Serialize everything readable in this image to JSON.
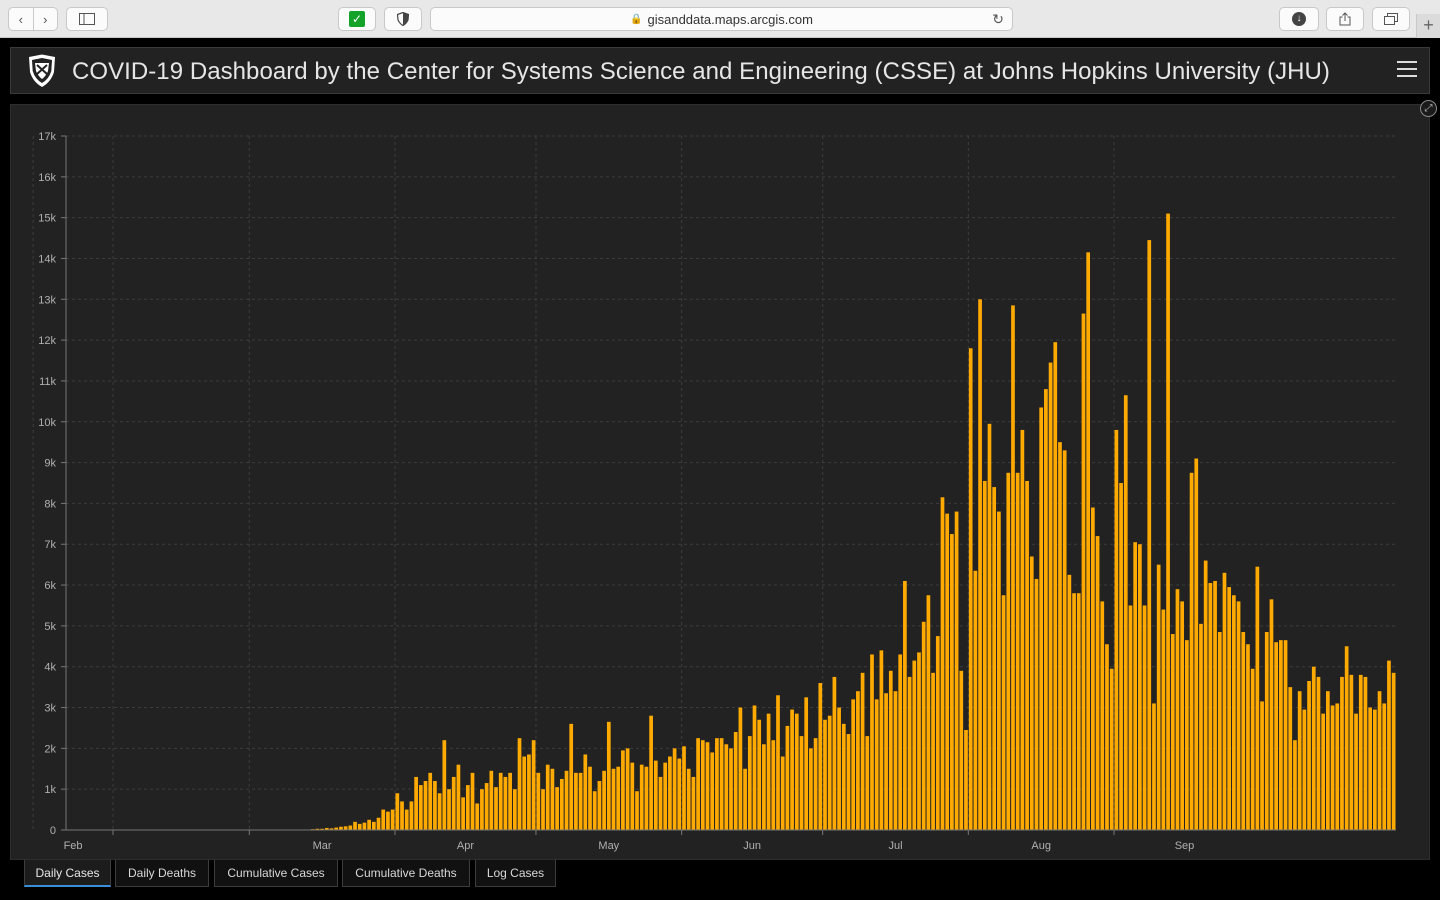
{
  "browser": {
    "url": "gisanddata.maps.arcgis.com"
  },
  "header": {
    "title": "COVID-19 Dashboard by the Center for Systems Science and Engineering (CSSE) at Johns Hopkins University (JHU)"
  },
  "tabs": [
    {
      "label": "Daily Cases",
      "active": true
    },
    {
      "label": "Daily Deaths",
      "active": false
    },
    {
      "label": "Cumulative Cases",
      "active": false
    },
    {
      "label": "Cumulative Deaths",
      "active": false
    },
    {
      "label": "Log Cases",
      "active": false
    }
  ],
  "colors": {
    "bar": "#ffaa00",
    "panel": "#222222",
    "active_tab_underline": "#3a8fd9"
  },
  "chart_data": {
    "type": "bar",
    "ylim": [
      0,
      17000
    ],
    "y_ticks": [
      "0",
      "1k",
      "2k",
      "3k",
      "4k",
      "5k",
      "6k",
      "7k",
      "8k",
      "9k",
      "10k",
      "11k",
      "12k",
      "13k",
      "14k",
      "15k",
      "16k",
      "17k"
    ],
    "x_ticks": [
      "Feb",
      "Mar",
      "Apr",
      "May",
      "Jun",
      "Jul",
      "Aug",
      "Sep"
    ],
    "grid": true,
    "start_date": "2020-01-22",
    "values": [
      0,
      0,
      0,
      0,
      0,
      0,
      0,
      0,
      0,
      0,
      0,
      0,
      0,
      0,
      0,
      0,
      0,
      0,
      0,
      0,
      0,
      0,
      0,
      0,
      0,
      0,
      0,
      0,
      0,
      0,
      0,
      0,
      0,
      0,
      0,
      0,
      0,
      0,
      0,
      0,
      0,
      0,
      0,
      0,
      0,
      0,
      0,
      0,
      0,
      0,
      0,
      10,
      20,
      30,
      30,
      50,
      40,
      60,
      80,
      90,
      110,
      200,
      150,
      180,
      250,
      200,
      300,
      500,
      450,
      500,
      900,
      700,
      500,
      700,
      1300,
      1100,
      1200,
      1400,
      1200,
      900,
      2200,
      1000,
      1300,
      1600,
      800,
      1100,
      1400,
      650,
      1000,
      1150,
      1450,
      1050,
      1400,
      1300,
      1400,
      1000,
      2250,
      1800,
      1850,
      2200,
      1400,
      1000,
      1600,
      1500,
      1050,
      1250,
      1450,
      2600,
      1400,
      1400,
      1850,
      1550,
      950,
      1200,
      1450,
      2650,
      1500,
      1550,
      1950,
      2000,
      1650,
      950,
      1600,
      1550,
      2800,
      1700,
      1300,
      1650,
      1800,
      2000,
      1750,
      2050,
      1500,
      1300,
      2250,
      2200,
      2150,
      1900,
      2250,
      2250,
      2100,
      2000,
      2400,
      3000,
      1500,
      2300,
      3050,
      2700,
      2100,
      2850,
      2200,
      3300,
      1800,
      2550,
      2950,
      2850,
      2300,
      3250,
      2000,
      2250,
      3600,
      2700,
      2800,
      3750,
      3000,
      2600,
      2350,
      3200,
      3400,
      3850,
      2300,
      4300,
      3200,
      4400,
      3350,
      3900,
      3400,
      4300,
      6100,
      3750,
      4150,
      4350,
      5100,
      5750,
      3850,
      4750,
      8150,
      7750,
      7250,
      7800,
      3900,
      2450,
      11800,
      6350,
      13000,
      8550,
      9950,
      8400,
      7800,
      5750,
      8750,
      12850,
      8750,
      9800,
      8550,
      6700,
      6150,
      10350,
      10800,
      11450,
      11950,
      9500,
      9300,
      6250,
      5800,
      5800,
      12650,
      14150,
      7900,
      7200,
      5600,
      4550,
      3950,
      9800,
      8500,
      10650,
      5500,
      7050,
      7000,
      5500,
      14450,
      3100,
      6500,
      5400,
      15100,
      4800,
      5900,
      5600,
      4650,
      8750,
      9100,
      5050,
      6600,
      6050,
      6100,
      4850,
      6300,
      5950,
      5750,
      5600,
      4850,
      4550,
      3950,
      6450,
      3150,
      4850,
      5650,
      4600,
      4650,
      4650,
      3500,
      2200,
      3400,
      2950,
      3650,
      4000,
      3750,
      2850,
      3400,
      3050,
      3100,
      3750,
      4500,
      3800,
      2850,
      3800,
      3750,
      3000,
      2950,
      3400,
      3100,
      4150,
      3850
    ]
  }
}
